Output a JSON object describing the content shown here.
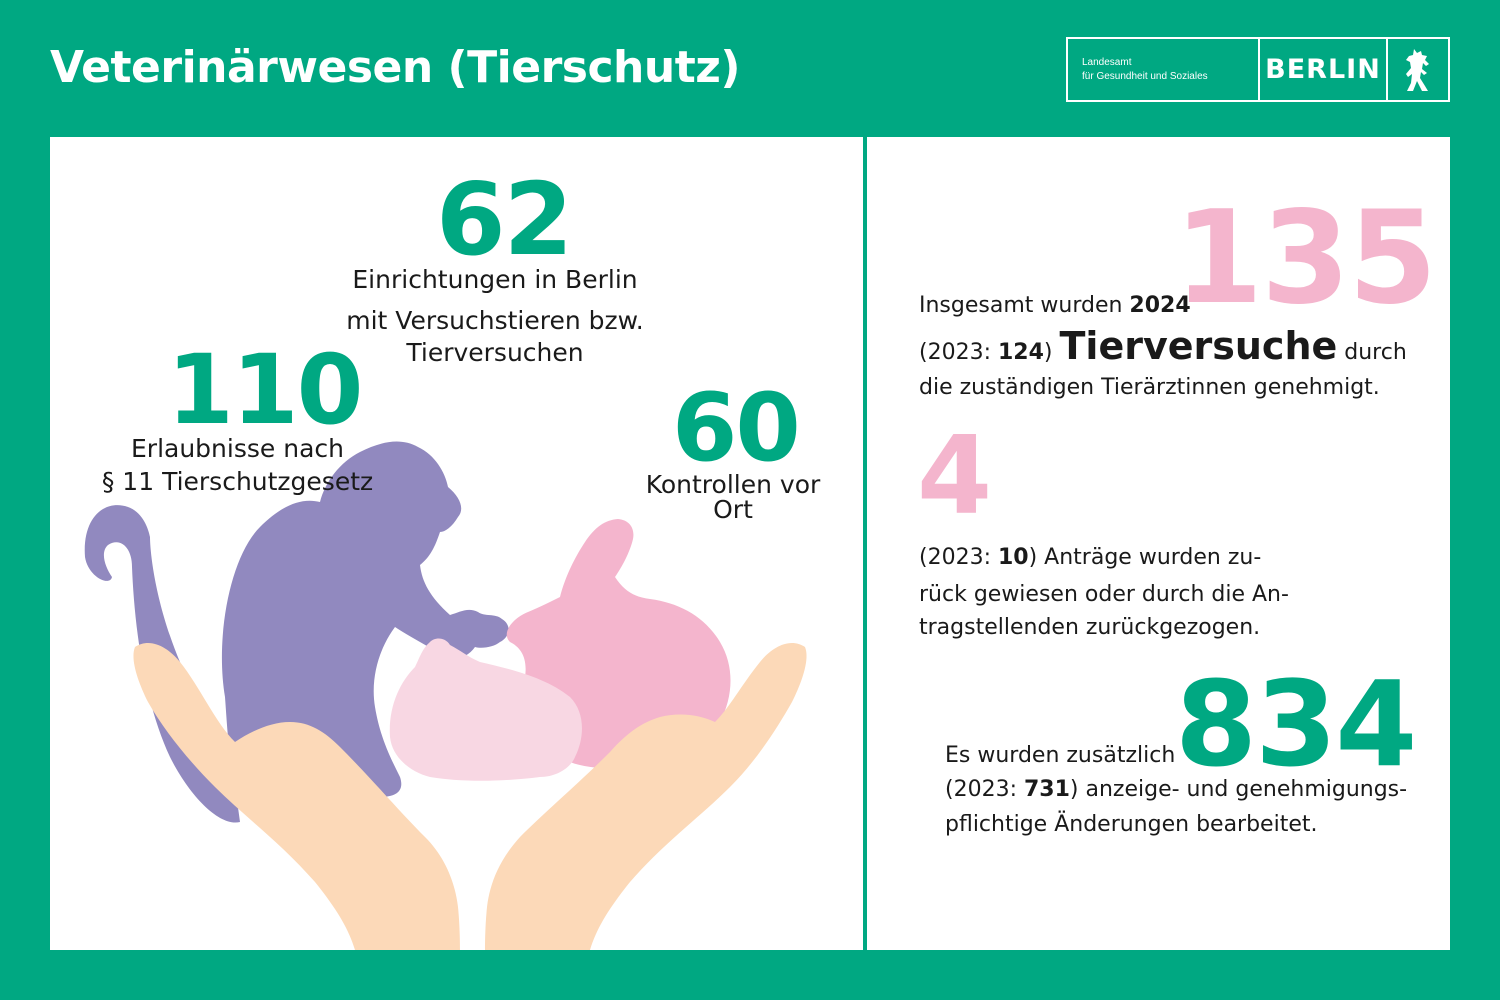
{
  "header": {
    "title": "Veterinärwesen (Tierschutz)"
  },
  "logo": {
    "org_line1": "Landesamt",
    "org_line2": "für Gesundheit und Soziales",
    "city": "BERLIN",
    "emblem": "berlin-bear-icon"
  },
  "left": {
    "stat1": {
      "value": "62",
      "line1": "Einrichtungen in Berlin",
      "line2": "mit Versuchstieren bzw.",
      "line3": "Tierversuchen"
    },
    "stat2": {
      "value": "110",
      "line1": "Erlaubnisse nach",
      "line2": "§ 11 Tierschutzgesetz"
    },
    "stat3": {
      "value": "60",
      "line1": "Kontrollen vor",
      "line2": "Ort"
    }
  },
  "right": {
    "block1": {
      "value": "135",
      "l1_pre": "Insgesamt wurden ",
      "l1_bold": "2024",
      "l2_pre": "(2023: ",
      "l2_bold": "124",
      "l2_post": ") ",
      "l2_word": "Tierversuche",
      "l2_end": " durch",
      "l3": "die zuständigen Tierärztinnen genehmigt."
    },
    "block2": {
      "value": "4",
      "l1_pre": "(2023: ",
      "l1_bold": "10",
      "l1_post": ")  Anträge wurden zu-",
      "l2": "rück gewiesen oder durch die An-",
      "l3": "tragstellenden zurückgezogen."
    },
    "block3": {
      "value": "834",
      "l1": "Es wurden zusätzlich",
      "l2_pre": "(2023: ",
      "l2_bold": "731",
      "l2_post": ") anzeige- und genehmigungs-",
      "l3": "pflichtige Änderungen bearbeitet."
    }
  },
  "colors": {
    "green": "#00a882",
    "pink": "#f4b5cd",
    "purple": "#9189bf",
    "light_pink": "#f8d7e3",
    "skin": "#fcd9b8"
  }
}
